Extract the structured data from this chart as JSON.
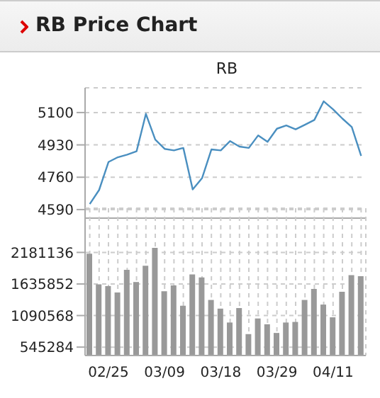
{
  "chart_data": [
    {
      "type": "line",
      "title": "RB Price Chart",
      "subtitle": "RB",
      "values": [
        4619,
        4693,
        4840,
        4865,
        4879,
        4896,
        5093,
        4958,
        4909,
        4901,
        4914,
        4696,
        4755,
        4906,
        4901,
        4950,
        4921,
        4914,
        4980,
        4946,
        5015,
        5032,
        5012,
        5036,
        5061,
        5159,
        5117,
        5068,
        5024,
        4872
      ],
      "color": "#4a8fc0",
      "ylim": [
        4545,
        5230
      ],
      "yticks": [
        4590,
        4760,
        4930,
        5100
      ],
      "grid": "y",
      "tick_labels": "y"
    },
    {
      "type": "bar",
      "categories": [
        null,
        null,
        "02/25",
        null,
        null,
        null,
        null,
        null,
        "03/09",
        null,
        null,
        null,
        null,
        null,
        "03/18",
        null,
        null,
        null,
        null,
        null,
        "03/29",
        null,
        null,
        null,
        null,
        null,
        "04/11",
        null,
        null,
        null
      ],
      "values": [
        2160000,
        1630000,
        1600000,
        1490000,
        1880000,
        1670000,
        1950000,
        2260000,
        1510000,
        1610000,
        1260000,
        1800000,
        1750000,
        1360000,
        1210000,
        970000,
        1220000,
        770000,
        1040000,
        940000,
        790000,
        970000,
        980000,
        1360000,
        1550000,
        1280000,
        1060000,
        1500000,
        1790000,
        1770000
      ],
      "color": "#999999",
      "ylim": [
        400000,
        2945000
      ],
      "yticks": [
        545284,
        1090568,
        1635852,
        2181136
      ],
      "grid": true
    }
  ]
}
